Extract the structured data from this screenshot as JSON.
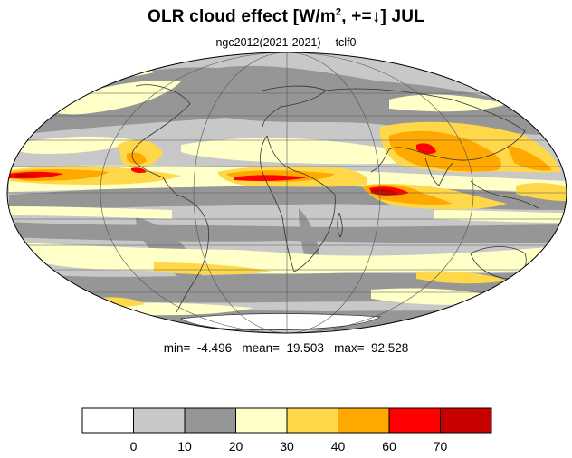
{
  "title": {
    "main": "OLR cloud effect [W/m",
    "sup": "2",
    "tail": ", +=↓]  JUL"
  },
  "subtitle": {
    "run": "ngc2012(2021-2021)",
    "var": "tclf0"
  },
  "stats": {
    "text": "min=  -4.496   mean=  19.503   max=  92.528"
  },
  "colorbar": {
    "colors": [
      "#ffffff",
      "#c8c8c8",
      "#969696",
      "#ffffc8",
      "#ffd84a",
      "#ffa800",
      "#ff0000",
      "#c80000"
    ],
    "tick_labels": [
      "0",
      "10",
      "20",
      "30",
      "40",
      "60",
      "70"
    ]
  },
  "map": {
    "projection": "mollweide",
    "palette": {
      "ocean_base": "#c8c8c8",
      "dark_gray": "#969696",
      "light_yellow": "#ffffc8",
      "yellow": "#ffd84a",
      "orange": "#ffa800",
      "red": "#ff0000",
      "dark_red": "#c80000",
      "coast": "#333333",
      "grid": "#555555"
    }
  }
}
